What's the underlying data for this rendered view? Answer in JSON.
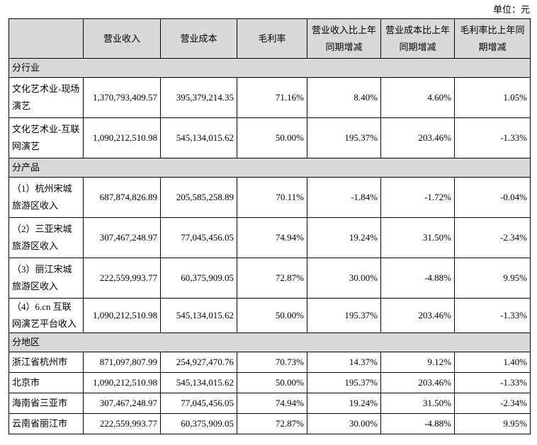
{
  "unit": "单位：元",
  "table": {
    "header": [
      "",
      "营业收入",
      "营业成本",
      "毛利率",
      "营业收入比上年同期增减",
      "营业成本比上年同期增减",
      "毛利率比上年同期增减"
    ],
    "sections": [
      {
        "title": "分行业",
        "rows": [
          [
            "文化艺术业-现场演艺",
            "1,370,793,409.57",
            "395,379,214.35",
            "71.16%",
            "8.40%",
            "4.60%",
            "1.05%"
          ],
          [
            "文化艺术业-互联网演艺",
            "1,090,212,510.98",
            "545,134,015.62",
            "50.00%",
            "195.37%",
            "203.46%",
            "-1.33%"
          ]
        ]
      },
      {
        "title": "分产品",
        "rows": [
          [
            "（1）杭州宋城旅游区收入",
            "687,874,826.89",
            "205,585,258.89",
            "70.11%",
            "-1.84%",
            "-1.72%",
            "-0.04%"
          ],
          [
            "（2）三亚宋城旅游区收入",
            "307,467,248.97",
            "77,045,456.05",
            "74.94%",
            "19.24%",
            "31.50%",
            "-2.34%"
          ],
          [
            "（3）丽江宋城旅游区收入",
            "222,559,993.77",
            "60,375,909.05",
            "72.87%",
            "30.00%",
            "-4.88%",
            "9.95%"
          ],
          [
            "（4）6.cn 互联网演艺平台收入",
            "1,090,212,510.98",
            "545,134,015.62",
            "50.00%",
            "195.37%",
            "203.46%",
            "-1.33%"
          ]
        ]
      },
      {
        "title": "分地区",
        "rows": [
          [
            "浙江省杭州市",
            "871,097,807.99",
            "254,927,470.76",
            "70.73%",
            "14.37%",
            "9.12%",
            "1.40%"
          ],
          [
            "北京市",
            "1,090,212,510.98",
            "545,134,015.62",
            "50.00%",
            "195.37%",
            "203.46%",
            "-1.33%"
          ],
          [
            "海南省三亚市",
            "307,467,248.97",
            "77,045,456.05",
            "74.94%",
            "19.24%",
            "31.50%",
            "-2.34%"
          ],
          [
            "云南省丽江市",
            "222,559,993.77",
            "60,375,909.05",
            "72.87%",
            "30.00%",
            "-4.88%",
            "9.95%"
          ]
        ]
      }
    ]
  }
}
